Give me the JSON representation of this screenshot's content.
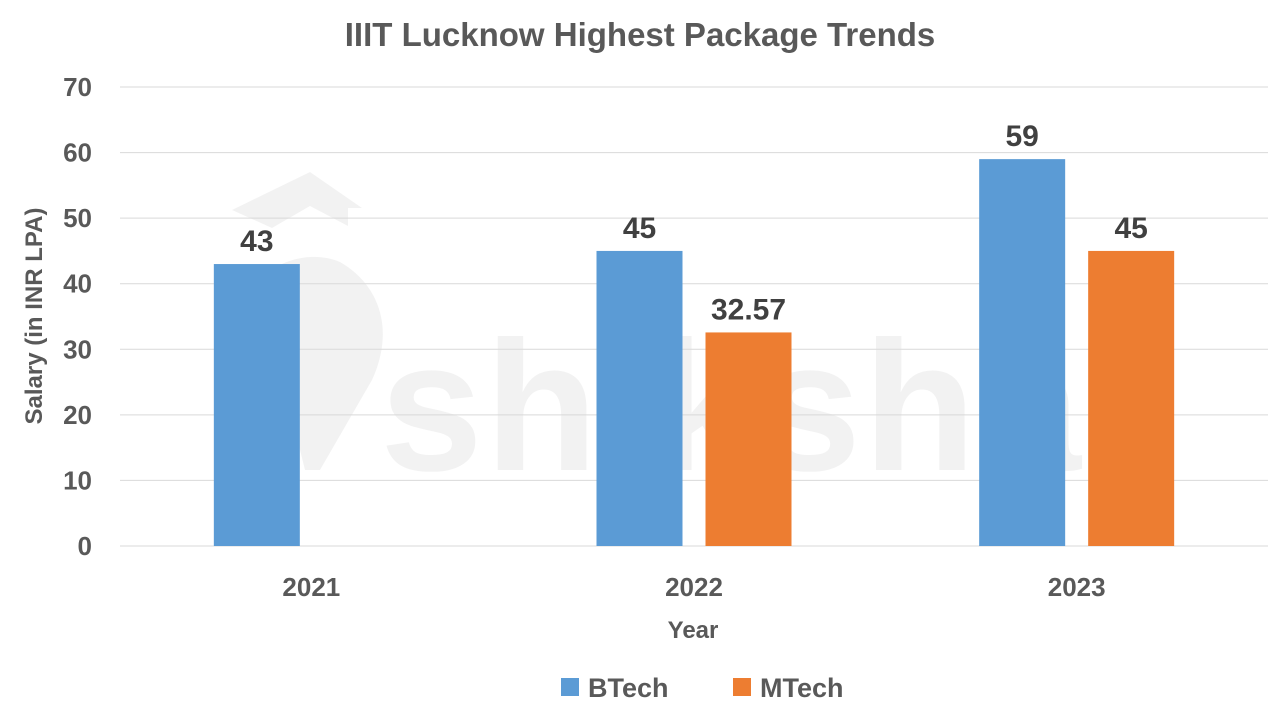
{
  "watermark": "shiksha",
  "chart_data": {
    "type": "bar",
    "title": "IIIT Lucknow Highest Package Trends",
    "xlabel": "Year",
    "ylabel": "Salary (in INR LPA)",
    "categories": [
      "2021",
      "2022",
      "2023"
    ],
    "ylim": [
      0,
      70
    ],
    "yticks": [
      0,
      10,
      20,
      30,
      40,
      50,
      60,
      70
    ],
    "grid": true,
    "legend_position": "bottom",
    "series": [
      {
        "name": "BTech",
        "color": "#5b9bd5",
        "values": [
          43,
          45,
          59
        ],
        "labels": [
          "43",
          "45",
          "59"
        ]
      },
      {
        "name": "MTech",
        "color": "#ed7d31",
        "values": [
          null,
          32.57,
          45
        ],
        "labels": [
          "",
          "32.57",
          "45"
        ]
      }
    ]
  }
}
